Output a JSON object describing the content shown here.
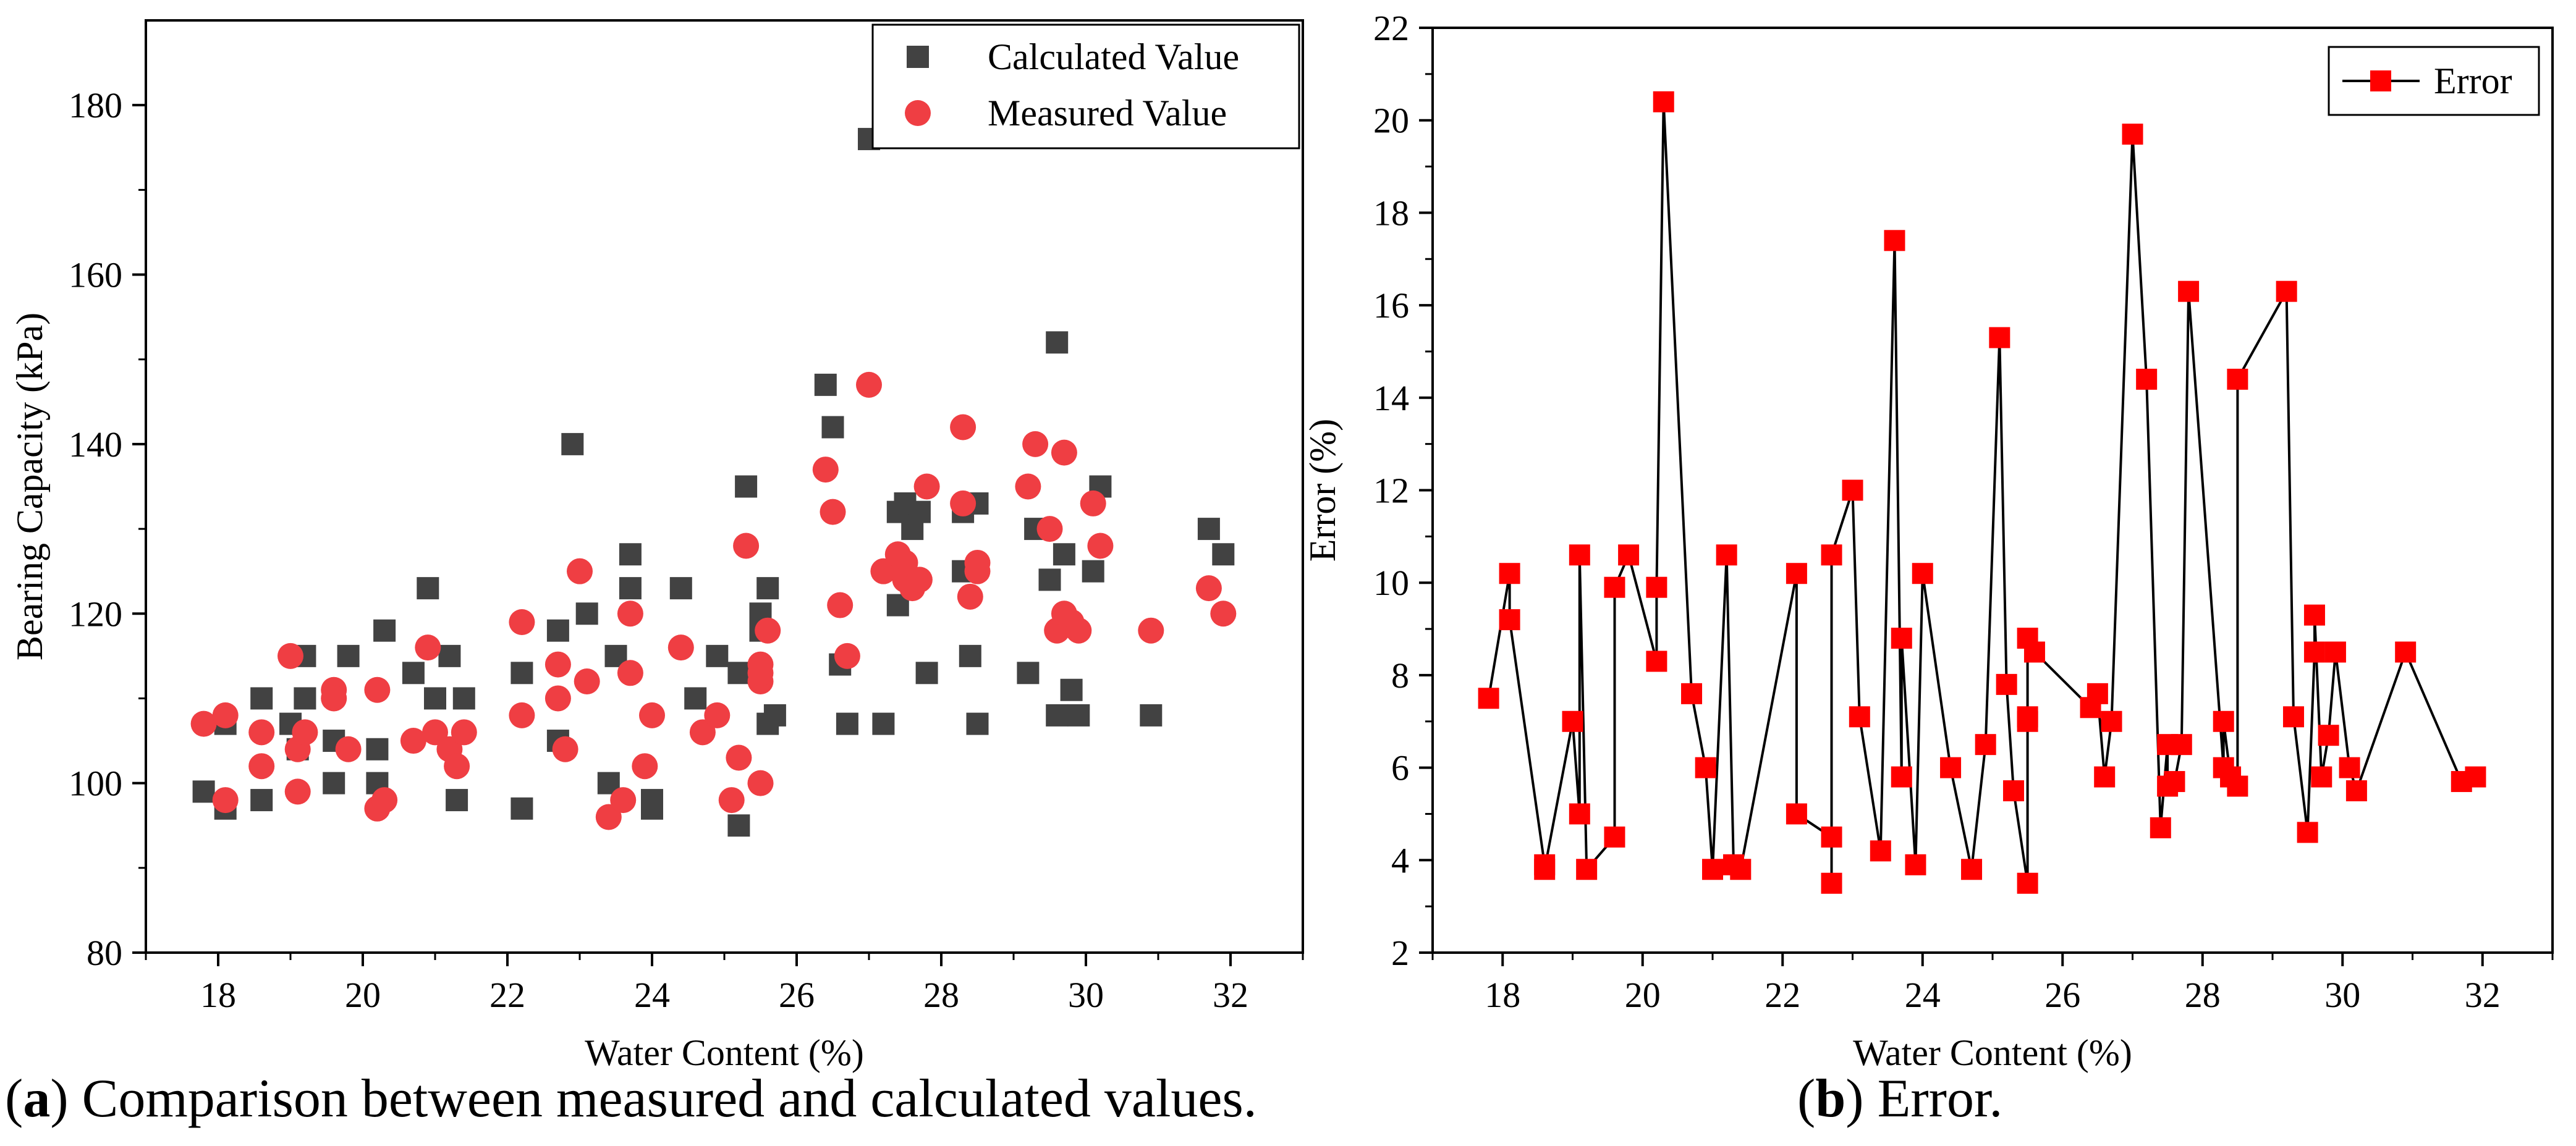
{
  "captions": {
    "a_letter": "a",
    "a_text": " Comparison between measured and calculated values.",
    "b_letter": "b",
    "b_text": " Error."
  },
  "colors": {
    "calculated": "#424242",
    "measured": "#ef3e43",
    "error": "#ff0000",
    "line": "#000000"
  },
  "chart_data": [
    {
      "type": "scatter",
      "title": "",
      "xlabel": "Water Content (%)",
      "ylabel": "Bearing Capacity (kPa)",
      "xlim": [
        17,
        33
      ],
      "ylim": [
        80,
        190
      ],
      "xticks": [
        18,
        20,
        22,
        24,
        26,
        28,
        30,
        32
      ],
      "yticks": [
        80,
        100,
        120,
        140,
        160,
        180
      ],
      "legend_position": "top-right",
      "series": [
        {
          "name": "Calculated Value",
          "marker": "square",
          "points": [
            [
              17.8,
              99
            ],
            [
              18.1,
              97
            ],
            [
              18.1,
              107
            ],
            [
              18.6,
              98
            ],
            [
              18.6,
              110
            ],
            [
              19.0,
              107
            ],
            [
              19.1,
              104
            ],
            [
              19.2,
              110
            ],
            [
              19.2,
              115
            ],
            [
              19.6,
              105
            ],
            [
              19.6,
              100
            ],
            [
              19.8,
              115
            ],
            [
              20.2,
              104
            ],
            [
              20.2,
              100
            ],
            [
              20.3,
              118
            ],
            [
              20.7,
              113
            ],
            [
              20.9,
              123
            ],
            [
              21.0,
              110
            ],
            [
              21.2,
              115
            ],
            [
              21.3,
              98
            ],
            [
              21.4,
              110
            ],
            [
              22.2,
              97
            ],
            [
              22.2,
              113
            ],
            [
              22.7,
              118
            ],
            [
              22.7,
              105
            ],
            [
              22.9,
              140
            ],
            [
              23.1,
              120
            ],
            [
              23.4,
              100
            ],
            [
              23.5,
              115
            ],
            [
              23.7,
              123
            ],
            [
              23.7,
              127
            ],
            [
              24.0,
              98
            ],
            [
              24.0,
              97
            ],
            [
              24.4,
              123
            ],
            [
              24.6,
              110
            ],
            [
              24.9,
              115
            ],
            [
              25.2,
              113
            ],
            [
              25.2,
              95
            ],
            [
              25.3,
              135
            ],
            [
              25.5,
              118
            ],
            [
              25.5,
              120
            ],
            [
              25.6,
              123
            ],
            [
              25.6,
              107
            ],
            [
              25.7,
              108
            ],
            [
              26.4,
              147
            ],
            [
              26.5,
              142
            ],
            [
              26.6,
              114
            ],
            [
              26.7,
              107
            ],
            [
              27.0,
              176
            ],
            [
              27.2,
              107
            ],
            [
              27.4,
              121
            ],
            [
              27.4,
              132
            ],
            [
              27.5,
              133
            ],
            [
              27.6,
              130
            ],
            [
              27.7,
              132
            ],
            [
              27.8,
              113
            ],
            [
              28.3,
              125
            ],
            [
              28.3,
              132
            ],
            [
              28.4,
              115
            ],
            [
              28.5,
              133
            ],
            [
              28.5,
              107
            ],
            [
              29.2,
              113
            ],
            [
              29.3,
              130
            ],
            [
              29.5,
              124
            ],
            [
              29.6,
              152
            ],
            [
              29.6,
              108
            ],
            [
              29.7,
              127
            ],
            [
              29.8,
              111
            ],
            [
              29.9,
              108
            ],
            [
              30.1,
              125
            ],
            [
              30.2,
              135
            ],
            [
              30.9,
              108
            ],
            [
              31.7,
              130
            ],
            [
              31.9,
              127
            ]
          ]
        },
        {
          "name": "Measured Value",
          "marker": "circle",
          "points": [
            [
              17.8,
              107
            ],
            [
              18.1,
              108
            ],
            [
              18.1,
              98
            ],
            [
              18.6,
              102
            ],
            [
              18.6,
              106
            ],
            [
              19.0,
              115
            ],
            [
              19.1,
              99
            ],
            [
              19.1,
              104
            ],
            [
              19.2,
              106
            ],
            [
              19.6,
              111
            ],
            [
              19.6,
              110
            ],
            [
              19.8,
              104
            ],
            [
              20.2,
              97
            ],
            [
              20.2,
              111
            ],
            [
              20.3,
              98
            ],
            [
              20.7,
              105
            ],
            [
              20.9,
              116
            ],
            [
              21.0,
              106
            ],
            [
              21.2,
              104
            ],
            [
              21.3,
              102
            ],
            [
              21.4,
              106
            ],
            [
              22.2,
              119
            ],
            [
              22.2,
              108
            ],
            [
              22.7,
              114
            ],
            [
              22.7,
              110
            ],
            [
              22.8,
              104
            ],
            [
              23.0,
              125
            ],
            [
              23.1,
              112
            ],
            [
              23.4,
              96
            ],
            [
              23.6,
              98
            ],
            [
              23.7,
              120
            ],
            [
              23.7,
              113
            ],
            [
              23.9,
              102
            ],
            [
              24.0,
              108
            ],
            [
              24.4,
              116
            ],
            [
              24.7,
              106
            ],
            [
              24.9,
              108
            ],
            [
              25.1,
              98
            ],
            [
              25.2,
              103
            ],
            [
              25.3,
              128
            ],
            [
              25.5,
              112
            ],
            [
              25.5,
              114
            ],
            [
              25.5,
              113
            ],
            [
              25.5,
              100
            ],
            [
              25.6,
              118
            ],
            [
              26.4,
              137
            ],
            [
              26.5,
              132
            ],
            [
              26.6,
              121
            ],
            [
              26.7,
              115
            ],
            [
              27.0,
              147
            ],
            [
              27.2,
              125
            ],
            [
              27.4,
              127
            ],
            [
              27.5,
              126
            ],
            [
              27.5,
              124
            ],
            [
              27.6,
              123
            ],
            [
              27.7,
              124
            ],
            [
              27.8,
              135
            ],
            [
              28.3,
              133
            ],
            [
              28.3,
              142
            ],
            [
              28.4,
              122
            ],
            [
              28.5,
              126
            ],
            [
              28.5,
              125
            ],
            [
              29.2,
              135
            ],
            [
              29.3,
              140
            ],
            [
              29.5,
              130
            ],
            [
              29.6,
              118
            ],
            [
              29.7,
              139
            ],
            [
              29.7,
              120
            ],
            [
              29.8,
              119
            ],
            [
              29.9,
              118
            ],
            [
              30.1,
              133
            ],
            [
              30.2,
              128
            ],
            [
              30.9,
              118
            ],
            [
              31.7,
              123
            ],
            [
              31.9,
              120
            ]
          ]
        }
      ]
    },
    {
      "type": "line",
      "title": "",
      "xlabel": "Water Content (%)",
      "ylabel": "Error (%)",
      "xlim": [
        17,
        33
      ],
      "ylim": [
        2,
        22
      ],
      "xticks": [
        18,
        20,
        22,
        24,
        26,
        28,
        30,
        32
      ],
      "yticks": [
        2,
        4,
        6,
        8,
        10,
        12,
        14,
        16,
        18,
        20,
        22
      ],
      "legend_position": "top-right",
      "series": [
        {
          "name": "Error",
          "marker": "square",
          "points": [
            [
              17.8,
              7.5
            ],
            [
              18.1,
              10.2
            ],
            [
              18.1,
              9.2
            ],
            [
              18.6,
              3.9
            ],
            [
              18.6,
              3.8
            ],
            [
              19.0,
              7.0
            ],
            [
              19.1,
              5.0
            ],
            [
              19.1,
              10.6
            ],
            [
              19.2,
              3.8
            ],
            [
              19.6,
              4.5
            ],
            [
              19.6,
              9.9
            ],
            [
              19.8,
              10.6
            ],
            [
              20.2,
              8.3
            ],
            [
              20.2,
              9.9
            ],
            [
              20.3,
              20.4
            ],
            [
              20.7,
              7.6
            ],
            [
              20.9,
              6.0
            ],
            [
              21.0,
              3.8
            ],
            [
              21.2,
              10.6
            ],
            [
              21.3,
              3.9
            ],
            [
              21.4,
              3.8
            ],
            [
              22.2,
              10.2
            ],
            [
              22.2,
              5.0
            ],
            [
              22.7,
              4.5
            ],
            [
              22.7,
              3.5
            ],
            [
              22.7,
              10.6
            ],
            [
              23.0,
              12.0
            ],
            [
              23.1,
              7.1
            ],
            [
              23.4,
              4.2
            ],
            [
              23.6,
              17.4
            ],
            [
              23.7,
              5.8
            ],
            [
              23.7,
              8.8
            ],
            [
              23.9,
              3.9
            ],
            [
              24.0,
              10.2
            ],
            [
              24.4,
              6.0
            ],
            [
              24.7,
              3.8
            ],
            [
              24.9,
              6.5
            ],
            [
              25.1,
              15.3
            ],
            [
              25.2,
              7.8
            ],
            [
              25.3,
              5.5
            ],
            [
              25.5,
              3.5
            ],
            [
              25.5,
              7.1
            ],
            [
              25.5,
              7.0
            ],
            [
              25.5,
              8.8
            ],
            [
              25.6,
              8.5
            ],
            [
              26.4,
              7.3
            ],
            [
              26.5,
              7.6
            ],
            [
              26.6,
              5.8
            ],
            [
              26.7,
              7.0
            ],
            [
              27.0,
              19.7
            ],
            [
              27.2,
              14.4
            ],
            [
              27.4,
              4.7
            ],
            [
              27.5,
              6.5
            ],
            [
              27.5,
              5.6
            ],
            [
              27.6,
              5.7
            ],
            [
              27.7,
              6.5
            ],
            [
              27.8,
              16.3
            ],
            [
              28.3,
              6.0
            ],
            [
              28.3,
              7.0
            ],
            [
              28.4,
              5.8
            ],
            [
              28.5,
              5.6
            ],
            [
              28.5,
              14.4
            ],
            [
              29.2,
              16.3
            ],
            [
              29.3,
              7.1
            ],
            [
              29.5,
              4.6
            ],
            [
              29.6,
              8.5
            ],
            [
              29.6,
              9.3
            ],
            [
              29.7,
              5.8
            ],
            [
              29.8,
              6.7
            ],
            [
              29.9,
              8.5
            ],
            [
              30.1,
              6.0
            ],
            [
              30.2,
              5.5
            ],
            [
              30.9,
              8.5
            ],
            [
              31.7,
              5.7
            ],
            [
              31.9,
              5.8
            ]
          ]
        }
      ]
    }
  ]
}
